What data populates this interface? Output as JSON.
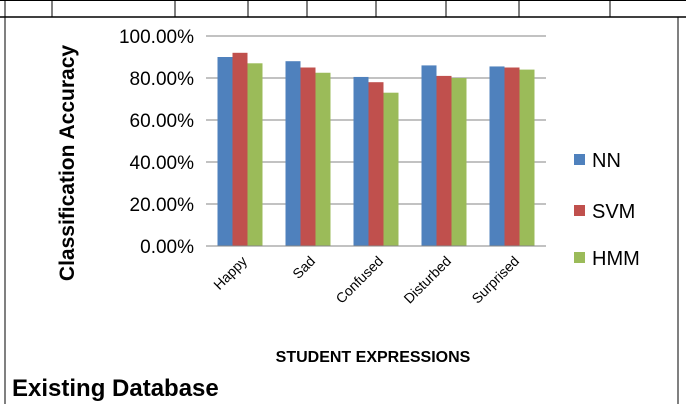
{
  "chart_data": {
    "type": "bar",
    "categories": [
      "Happy",
      "Sad",
      "Confused",
      "Disturbed",
      "Surprised"
    ],
    "series": [
      {
        "name": "NN",
        "color": "#4F81BD",
        "values": [
          0.9,
          0.88,
          0.805,
          0.86,
          0.855
        ]
      },
      {
        "name": "SVM",
        "color": "#C0504D",
        "values": [
          0.92,
          0.85,
          0.78,
          0.81,
          0.85
        ]
      },
      {
        "name": "HMM",
        "color": "#9BBB59",
        "values": [
          0.87,
          0.825,
          0.73,
          0.8,
          0.84
        ]
      }
    ],
    "ylim": [
      0,
      1
    ],
    "yticks": [
      "0.00%",
      "20.00%",
      "40.00%",
      "60.00%",
      "80.00%",
      "100.00%"
    ],
    "ylabel": "Classification Accuracy",
    "xlabel": "STUDENT EXPRESSIONS",
    "legend_position": "right",
    "grid": true
  },
  "caption": "Existing Database"
}
